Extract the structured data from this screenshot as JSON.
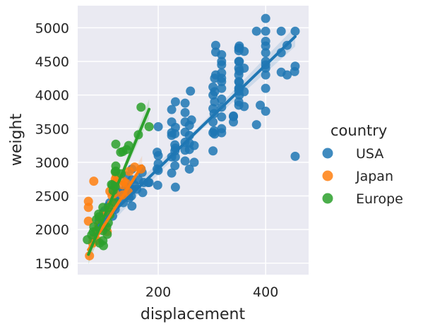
{
  "chart_data": {
    "type": "scatter",
    "title": "",
    "xlabel": "displacement",
    "ylabel": "weight",
    "xlim": [
      50,
      480
    ],
    "ylim": [
      1330,
      5330
    ],
    "xticks": [
      200,
      400
    ],
    "yticks": [
      1500,
      2000,
      2500,
      3000,
      3500,
      4000,
      4500,
      5000
    ],
    "grid": true,
    "legend": {
      "title": "country",
      "placement": "right"
    },
    "colors": {
      "USA": "#1f77b4",
      "Japan": "#ff7f0e",
      "Europe": "#2ca02c",
      "background": "#eaeaf2",
      "grid": "#ffffff"
    },
    "series": [
      {
        "name": "USA",
        "color": "#1f77b4",
        "regression": {
          "x": [
            90,
            455
          ],
          "y": [
            2060,
            4870
          ]
        },
        "points": [
          [
            90,
            2130
          ],
          [
            98,
            2160
          ],
          [
            98,
            2250
          ],
          [
            100,
            2280
          ],
          [
            105,
            2220
          ],
          [
            107,
            2350
          ],
          [
            110,
            2400
          ],
          [
            112,
            2330
          ],
          [
            115,
            2200
          ],
          [
            120,
            2300
          ],
          [
            121,
            2500
          ],
          [
            122,
            2420
          ],
          [
            125,
            2580
          ],
          [
            130,
            2560
          ],
          [
            135,
            2400
          ],
          [
            140,
            2500
          ],
          [
            140,
            2640
          ],
          [
            140,
            2800
          ],
          [
            145,
            2620
          ],
          [
            146,
            2470
          ],
          [
            150,
            2500
          ],
          [
            151,
            2350
          ],
          [
            151,
            2600
          ],
          [
            151,
            2740
          ],
          [
            151,
            2900
          ],
          [
            156,
            2660
          ],
          [
            160,
            2600
          ],
          [
            163,
            2740
          ],
          [
            168,
            2900
          ],
          [
            170,
            2850
          ],
          [
            171,
            2550
          ],
          [
            173,
            2700
          ],
          [
            181,
            2700
          ],
          [
            183,
            2700
          ],
          [
            199,
            2660
          ],
          [
            200,
            2880
          ],
          [
            200,
            2980
          ],
          [
            200,
            3100
          ],
          [
            198,
            2900
          ],
          [
            198,
            3150
          ],
          [
            200,
            3530
          ],
          [
            225,
            2840
          ],
          [
            225,
            3080
          ],
          [
            225,
            3400
          ],
          [
            225,
            3440
          ],
          [
            225,
            3600
          ],
          [
            225,
            3785
          ],
          [
            231,
            2950
          ],
          [
            231,
            3170
          ],
          [
            231,
            3260
          ],
          [
            231,
            3425
          ],
          [
            232,
            2630
          ],
          [
            232,
            3080
          ],
          [
            232,
            3210
          ],
          [
            232,
            3520
          ],
          [
            232,
            3900
          ],
          [
            250,
            3020
          ],
          [
            250,
            3180
          ],
          [
            250,
            3300
          ],
          [
            250,
            3450
          ],
          [
            250,
            3600
          ],
          [
            250,
            3740
          ],
          [
            250,
            3880
          ],
          [
            258,
            2900
          ],
          [
            258,
            3190
          ],
          [
            258,
            3285
          ],
          [
            258,
            3400
          ],
          [
            258,
            3550
          ],
          [
            260,
            4060
          ],
          [
            262,
            3630
          ],
          [
            267,
            3000
          ],
          [
            267,
            3250
          ],
          [
            302,
            3170
          ],
          [
            302,
            3440
          ],
          [
            302,
            3600
          ],
          [
            302,
            3800
          ],
          [
            302,
            4000
          ],
          [
            302,
            4120
          ],
          [
            304,
            3470
          ],
          [
            304,
            3725
          ],
          [
            305,
            3420
          ],
          [
            305,
            3900
          ],
          [
            305,
            4050
          ],
          [
            305,
            4250
          ],
          [
            307,
            4300
          ],
          [
            307,
            4640
          ],
          [
            307,
            4740
          ],
          [
            318,
            3500
          ],
          [
            318,
            3675
          ],
          [
            318,
            3820
          ],
          [
            318,
            3940
          ],
          [
            318,
            4100
          ],
          [
            318,
            4200
          ],
          [
            318,
            4250
          ],
          [
            318,
            4330
          ],
          [
            318,
            4450
          ],
          [
            318,
            4500
          ],
          [
            318,
            4600
          ],
          [
            318,
            3440
          ],
          [
            340,
            3600
          ],
          [
            340,
            3680
          ],
          [
            340,
            3690
          ],
          [
            350,
            3850
          ],
          [
            350,
            3900
          ],
          [
            350,
            4060
          ],
          [
            350,
            4100
          ],
          [
            350,
            4200
          ],
          [
            350,
            4300
          ],
          [
            350,
            4400
          ],
          [
            350,
            4500
          ],
          [
            350,
            4660
          ],
          [
            350,
            4700
          ],
          [
            351,
            4000
          ],
          [
            351,
            4100
          ],
          [
            351,
            4190
          ],
          [
            351,
            4360
          ],
          [
            351,
            4500
          ],
          [
            351,
            4700
          ],
          [
            351,
            4730
          ],
          [
            360,
            3830
          ],
          [
            360,
            4050
          ],
          [
            360,
            4400
          ],
          [
            360,
            4650
          ],
          [
            383,
            4950
          ],
          [
            383,
            3560
          ],
          [
            390,
            3850
          ],
          [
            400,
            3760
          ],
          [
            400,
            4100
          ],
          [
            400,
            4300
          ],
          [
            400,
            4400
          ],
          [
            400,
            4450
          ],
          [
            400,
            4500
          ],
          [
            400,
            4630
          ],
          [
            400,
            4730
          ],
          [
            400,
            4800
          ],
          [
            400,
            4950
          ],
          [
            400,
            5140
          ],
          [
            429,
            4950
          ],
          [
            429,
            4340
          ],
          [
            429,
            4630
          ],
          [
            440,
            4740
          ],
          [
            440,
            4300
          ],
          [
            454,
            4350
          ],
          [
            455,
            4950
          ],
          [
            455,
            4430
          ],
          [
            455,
            3090
          ]
        ]
      },
      {
        "name": "Japan",
        "color": "#ff7f0e",
        "regression": {
          "x": [
            70,
            170
          ],
          "y": [
            1700,
            2950
          ]
        },
        "points": [
          [
            70,
            2125
          ],
          [
            70,
            2330
          ],
          [
            70,
            2420
          ],
          [
            72,
            1610
          ],
          [
            78,
            1800
          ],
          [
            79,
            1870
          ],
          [
            80,
            2720
          ],
          [
            85,
            1985
          ],
          [
            86,
            1840
          ],
          [
            89,
            2065
          ],
          [
            91,
            2030
          ],
          [
            97,
            2100
          ],
          [
            97,
            2210
          ],
          [
            98,
            2020
          ],
          [
            105,
            1970
          ],
          [
            107,
            2225
          ],
          [
            108,
            2245
          ],
          [
            110,
            2570
          ],
          [
            113,
            2380
          ],
          [
            114,
            2505
          ],
          [
            119,
            2545
          ],
          [
            120,
            2700
          ],
          [
            120,
            2750
          ],
          [
            122,
            2800
          ],
          [
            134,
            2515
          ],
          [
            134,
            2665
          ],
          [
            135,
            2720
          ],
          [
            140,
            2690
          ],
          [
            144,
            2560
          ],
          [
            146,
            2865
          ],
          [
            156,
            2930
          ],
          [
            168,
            2900
          ]
        ]
      },
      {
        "name": "Europe",
        "color": "#2ca02c",
        "regression": {
          "x": [
            70,
            183
          ],
          "y": [
            1630,
            3790
          ]
        },
        "points": [
          [
            68,
            1850
          ],
          [
            76,
            1920
          ],
          [
            79,
            1965
          ],
          [
            80,
            2040
          ],
          [
            85,
            2150
          ],
          [
            89,
            2230
          ],
          [
            90,
            2025
          ],
          [
            90,
            2190
          ],
          [
            91,
            1800
          ],
          [
            97,
            1835
          ],
          [
            97,
            2100
          ],
          [
            97,
            2330
          ],
          [
            97,
            1985
          ],
          [
            98,
            1760
          ],
          [
            104,
            2040
          ],
          [
            105,
            1930
          ],
          [
            107,
            2100
          ],
          [
            108,
            2330
          ],
          [
            110,
            2220
          ],
          [
            113,
            2670
          ],
          [
            115,
            2660
          ],
          [
            116,
            2580
          ],
          [
            120,
            2400
          ],
          [
            120,
            2640
          ],
          [
            120,
            2860
          ],
          [
            121,
            2870
          ],
          [
            121,
            2945
          ],
          [
            121,
            3270
          ],
          [
            130,
            3150
          ],
          [
            131,
            2830
          ],
          [
            134,
            3160
          ],
          [
            141,
            3190
          ],
          [
            145,
            3250
          ],
          [
            163,
            3410
          ],
          [
            168,
            3820
          ],
          [
            183,
            3530
          ]
        ]
      }
    ]
  }
}
